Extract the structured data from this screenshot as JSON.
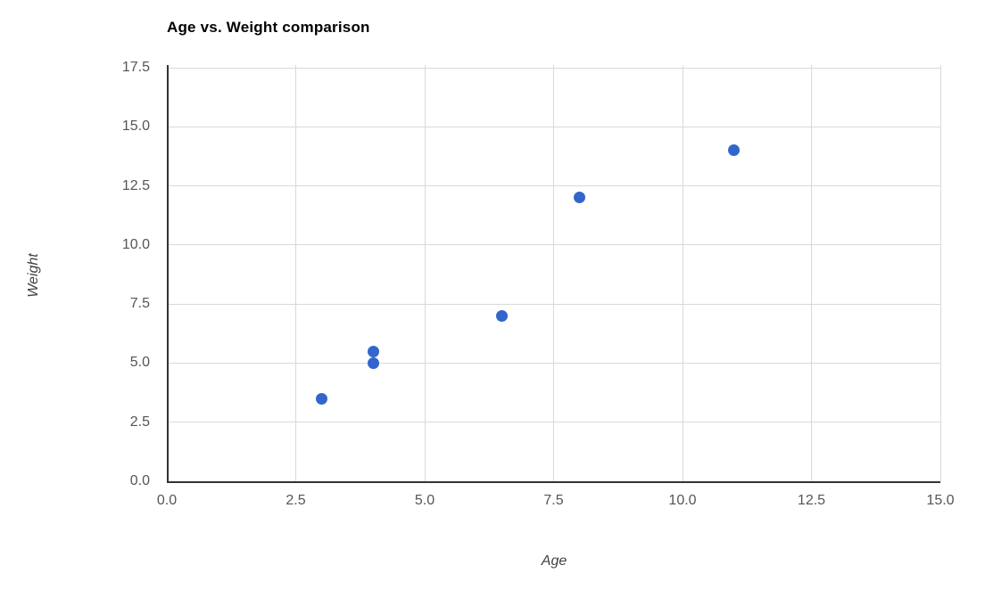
{
  "chart_data": {
    "type": "scatter",
    "title": "Age vs. Weight comparison",
    "xlabel": "Age",
    "ylabel": "Weight",
    "xlim": [
      0,
      15
    ],
    "ylim": [
      0,
      17.5
    ],
    "xticks": [
      0,
      2.5,
      5,
      7.5,
      10,
      12.5,
      15
    ],
    "yticks": [
      0,
      2.5,
      5,
      7.5,
      10,
      12.5,
      15,
      17.5
    ],
    "tick_decimals": 1,
    "grid": true,
    "legend_position": "none",
    "series": [
      {
        "name": "Weight",
        "color": "#3366cc",
        "marker": "circle",
        "points": [
          {
            "x": 3,
            "y": 3.5
          },
          {
            "x": 4,
            "y": 5
          },
          {
            "x": 4,
            "y": 5.5
          },
          {
            "x": 6.5,
            "y": 7
          },
          {
            "x": 8,
            "y": 12
          },
          {
            "x": 11,
            "y": 14
          }
        ]
      }
    ],
    "colors": {
      "title": "#000000",
      "axis_line": "#333333",
      "gridline": "#d9d9d9",
      "tick_label": "#555555",
      "axis_title": "#424242",
      "background": "#ffffff"
    }
  }
}
